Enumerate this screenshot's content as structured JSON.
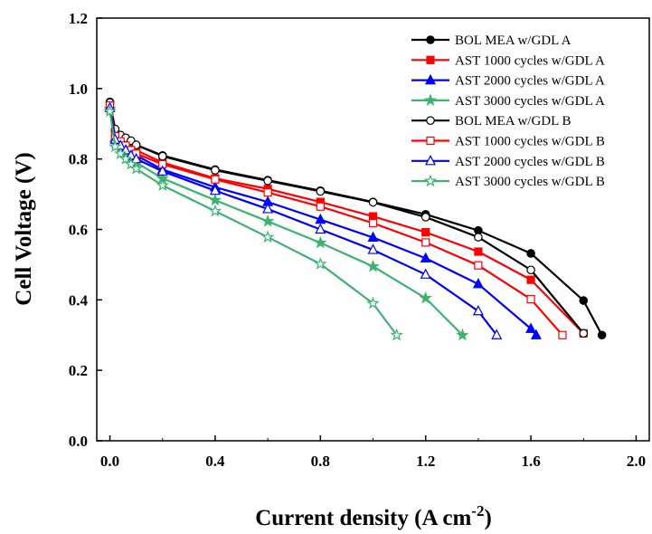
{
  "chart_data": {
    "type": "line",
    "xlabel": "Current density (A cm",
    "xlabel_sup": "-2",
    "xlabel_end": ")",
    "ylabel": "Cell Voltage (V)",
    "xlim": [
      -0.05,
      2.05
    ],
    "ylim": [
      0.0,
      1.2
    ],
    "x_ticks": [
      0.0,
      0.4,
      0.8,
      1.2,
      1.6,
      2.0
    ],
    "x_tick_labels": [
      "0.0",
      "0.4",
      "0.8",
      "1.2",
      "1.6",
      "2.0"
    ],
    "y_ticks": [
      0.0,
      0.2,
      0.4,
      0.6,
      0.8,
      1.0,
      1.2
    ],
    "y_tick_labels": [
      "0.0",
      "0.2",
      "0.4",
      "0.6",
      "0.8",
      "1.0",
      "1.2"
    ],
    "grid": false,
    "legend_position": "top-right",
    "series": [
      {
        "name": "BOL MEA w/GDL A",
        "color": "#000000",
        "marker": "circle",
        "filled": true,
        "x": [
          0.0,
          0.02,
          0.04,
          0.06,
          0.08,
          0.1,
          0.2,
          0.4,
          0.6,
          0.8,
          1.0,
          1.2,
          1.4,
          1.6,
          1.8,
          1.87
        ],
        "y": [
          0.962,
          0.88,
          0.865,
          0.857,
          0.85,
          0.84,
          0.81,
          0.77,
          0.74,
          0.71,
          0.678,
          0.643,
          0.597,
          0.532,
          0.398,
          0.3
        ]
      },
      {
        "name": "AST 1000 cycles w/GDL A",
        "color": "#ff0000",
        "marker": "square",
        "filled": true,
        "x": [
          0.0,
          0.02,
          0.04,
          0.06,
          0.08,
          0.1,
          0.2,
          0.4,
          0.6,
          0.8,
          1.0,
          1.2,
          1.4,
          1.6,
          1.8
        ],
        "y": [
          0.955,
          0.87,
          0.855,
          0.845,
          0.835,
          0.825,
          0.79,
          0.745,
          0.715,
          0.678,
          0.637,
          0.592,
          0.537,
          0.457,
          0.305
        ]
      },
      {
        "name": "AST 2000 cycles w/GDL A",
        "color": "#0000ff",
        "marker": "triangle",
        "filled": true,
        "x": [
          0.0,
          0.02,
          0.04,
          0.06,
          0.08,
          0.1,
          0.2,
          0.4,
          0.6,
          0.8,
          1.0,
          1.2,
          1.4,
          1.6,
          1.62
        ],
        "y": [
          0.95,
          0.86,
          0.845,
          0.833,
          0.82,
          0.81,
          0.77,
          0.72,
          0.678,
          0.628,
          0.577,
          0.518,
          0.445,
          0.318,
          0.3
        ]
      },
      {
        "name": "AST 3000 cycles w/GDL A",
        "color": "#3cb371",
        "marker": "star",
        "filled": true,
        "x": [
          0.0,
          0.02,
          0.04,
          0.06,
          0.08,
          0.1,
          0.2,
          0.4,
          0.6,
          0.8,
          1.0,
          1.2,
          1.34
        ],
        "y": [
          0.942,
          0.845,
          0.83,
          0.815,
          0.8,
          0.79,
          0.745,
          0.683,
          0.623,
          0.562,
          0.495,
          0.405,
          0.3
        ]
      },
      {
        "name": "BOL MEA w/GDL B",
        "color": "#000000",
        "marker": "circle",
        "filled": false,
        "x": [
          0.0,
          0.02,
          0.04,
          0.06,
          0.08,
          0.1,
          0.2,
          0.4,
          0.6,
          0.8,
          1.0,
          1.2,
          1.4,
          1.6,
          1.8
        ],
        "y": [
          0.96,
          0.885,
          0.868,
          0.86,
          0.852,
          0.84,
          0.808,
          0.768,
          0.738,
          0.708,
          0.677,
          0.635,
          0.578,
          0.485,
          0.305
        ]
      },
      {
        "name": "AST 1000 cycles w/GDL B",
        "color": "#ff0000",
        "marker": "square",
        "filled": false,
        "x": [
          0.0,
          0.02,
          0.04,
          0.06,
          0.08,
          0.1,
          0.2,
          0.4,
          0.6,
          0.8,
          1.0,
          1.2,
          1.4,
          1.6,
          1.72
        ],
        "y": [
          0.952,
          0.865,
          0.85,
          0.838,
          0.825,
          0.815,
          0.785,
          0.742,
          0.705,
          0.665,
          0.618,
          0.563,
          0.498,
          0.402,
          0.3
        ]
      },
      {
        "name": "AST 2000 cycles w/GDL B",
        "color": "#0000ff",
        "marker": "triangle",
        "filled": false,
        "x": [
          0.0,
          0.02,
          0.04,
          0.06,
          0.08,
          0.1,
          0.2,
          0.4,
          0.6,
          0.8,
          1.0,
          1.2,
          1.4,
          1.47
        ],
        "y": [
          0.945,
          0.855,
          0.838,
          0.825,
          0.81,
          0.8,
          0.765,
          0.71,
          0.658,
          0.6,
          0.542,
          0.472,
          0.368,
          0.3
        ]
      },
      {
        "name": "AST 3000 cycles w/GDL B",
        "color": "#3cb371",
        "marker": "star",
        "filled": false,
        "x": [
          0.0,
          0.02,
          0.04,
          0.06,
          0.08,
          0.1,
          0.2,
          0.4,
          0.6,
          0.8,
          1.0,
          1.09
        ],
        "y": [
          0.935,
          0.835,
          0.815,
          0.8,
          0.785,
          0.772,
          0.725,
          0.652,
          0.578,
          0.502,
          0.39,
          0.3
        ]
      }
    ]
  }
}
